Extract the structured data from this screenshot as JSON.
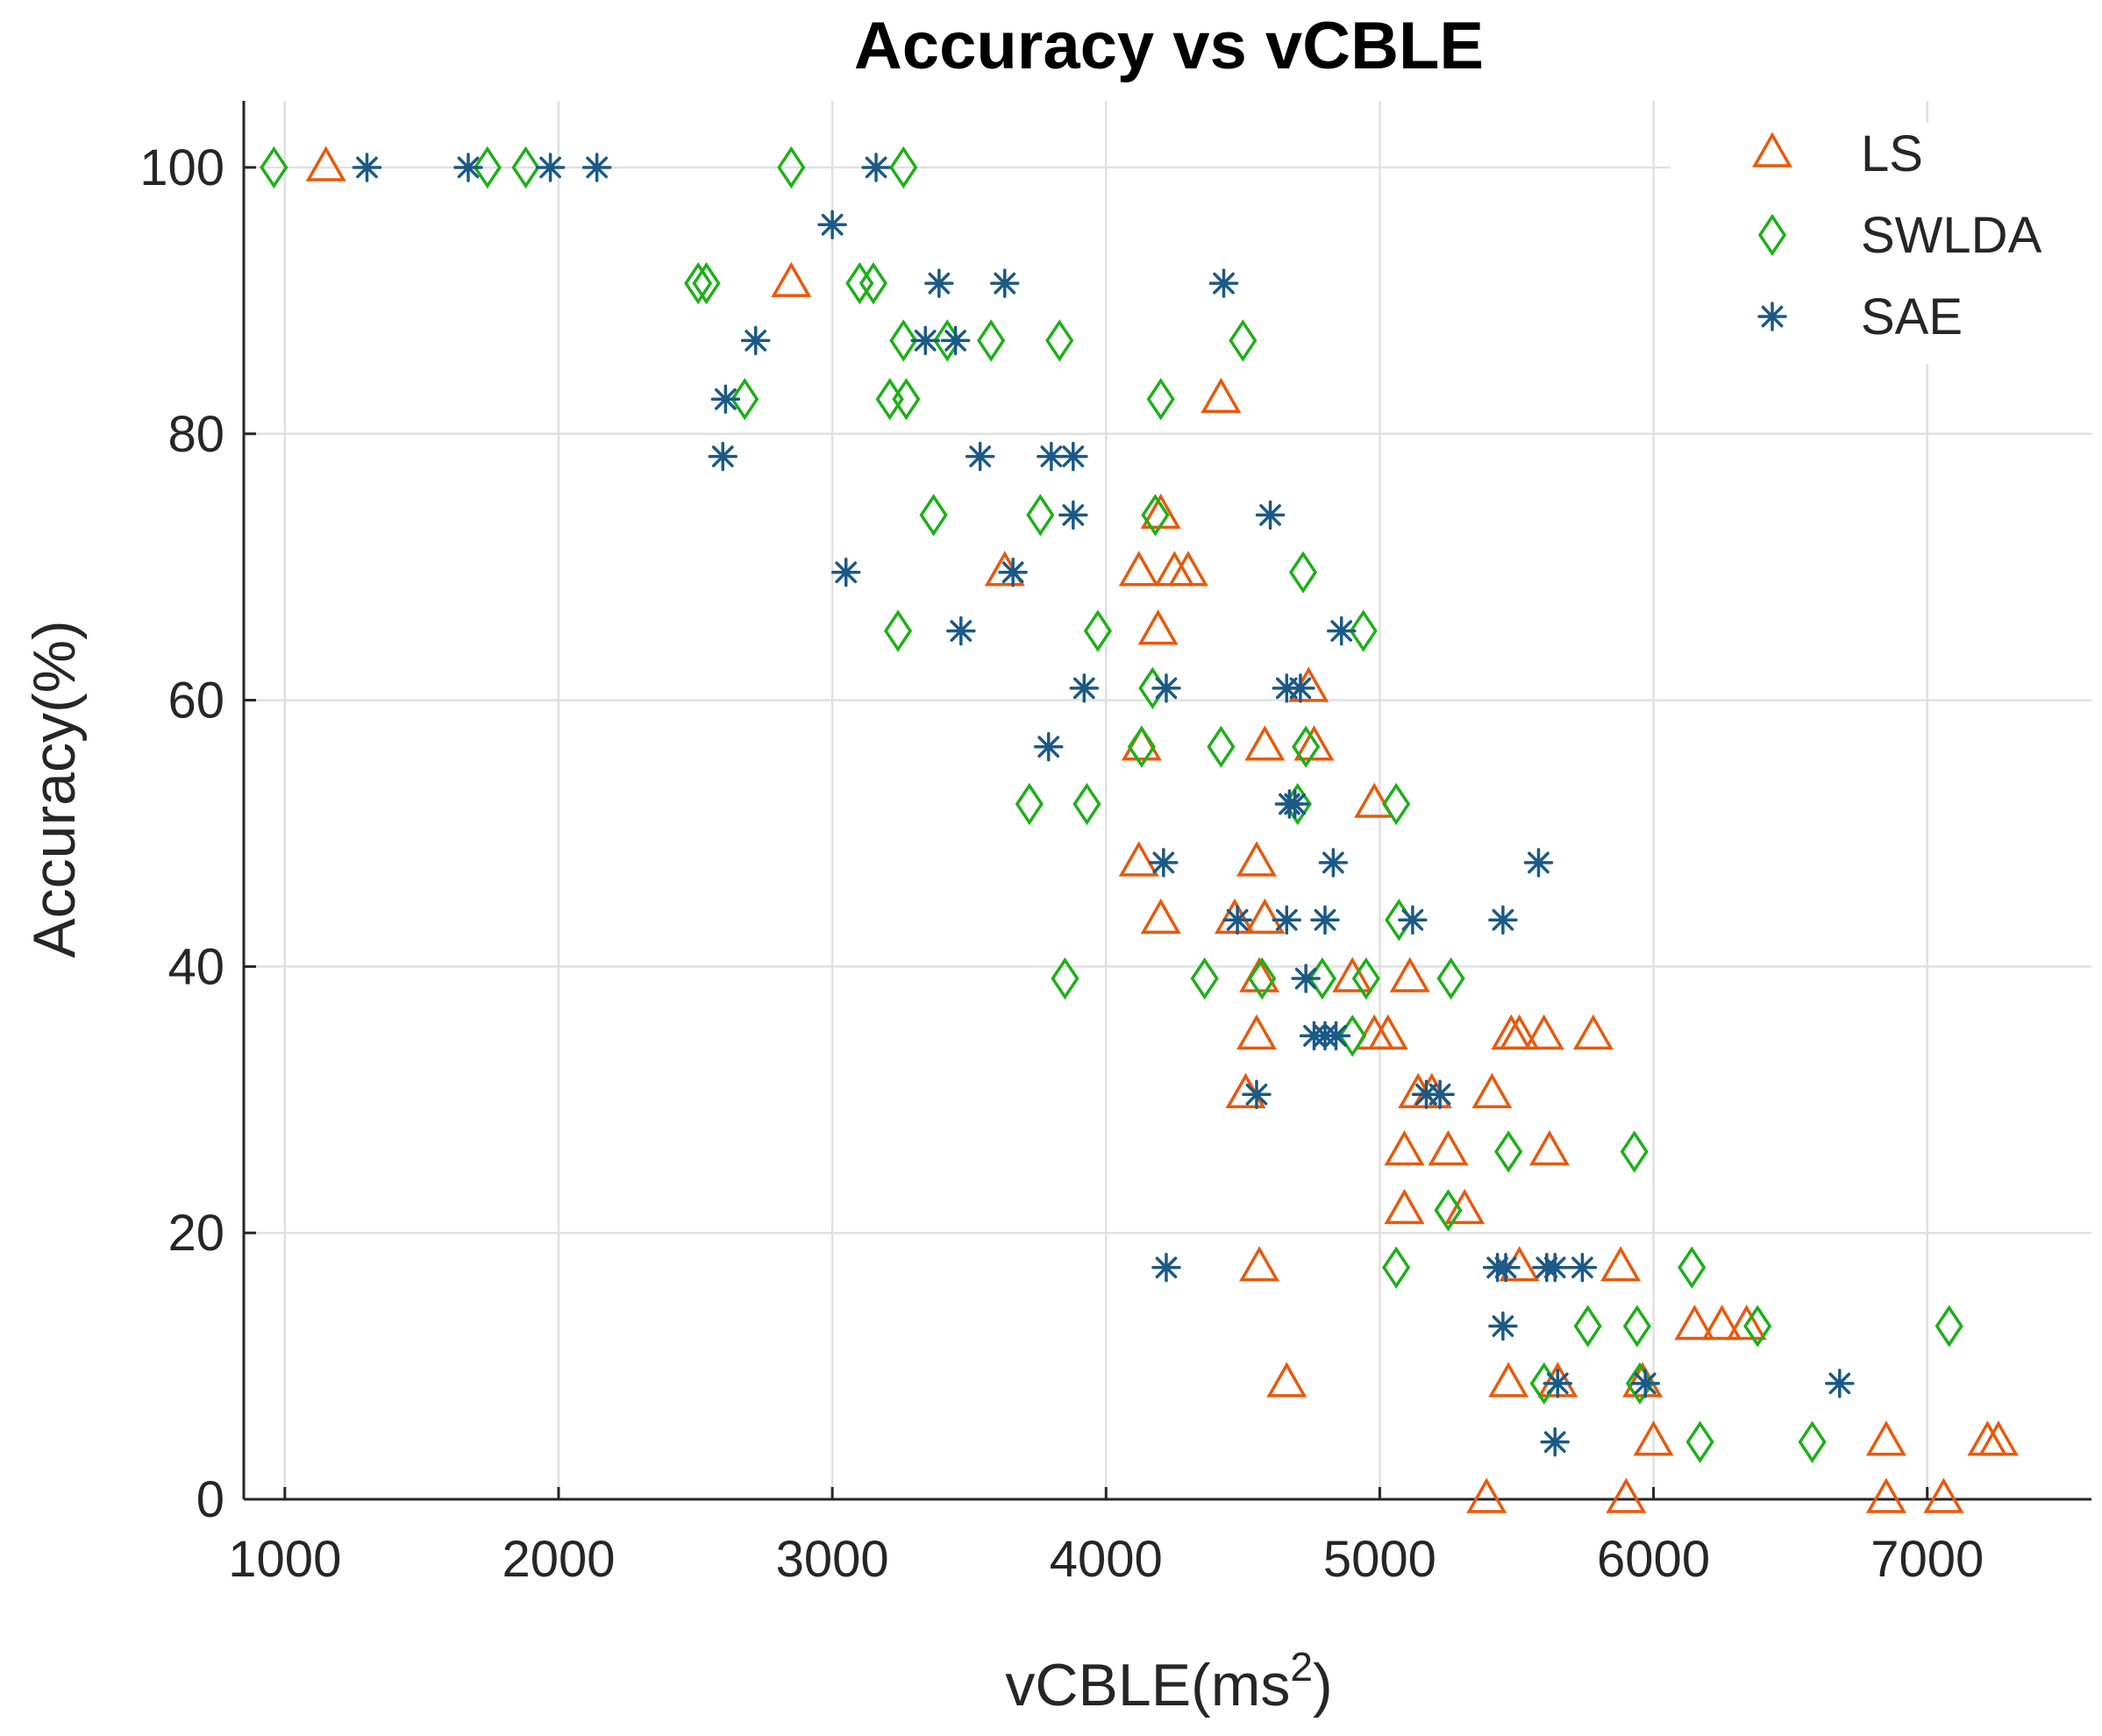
{
  "chart_data": {
    "type": "scatter",
    "title": "Accuracy vs vCBLE",
    "xlabel_base": "vCBLE(ms",
    "xlabel_sup": "2",
    "xlabel_end": ")",
    "ylabel": "Accuracy(%)",
    "xlim": [
      850,
      7600
    ],
    "ylim": [
      0,
      105
    ],
    "xticks": [
      1000,
      2000,
      3000,
      4000,
      5000,
      6000,
      7000
    ],
    "yticks": [
      0,
      20,
      40,
      60,
      80,
      100
    ],
    "grid": true,
    "legend_position": "top-right",
    "series": [
      {
        "name": "LS",
        "marker": "triangle",
        "color": "#E8590C",
        "points": [
          [
            1150,
            100
          ],
          [
            2850,
            91.3
          ],
          [
            4420,
            82.6
          ],
          [
            4200,
            73.9
          ],
          [
            3630,
            69.6
          ],
          [
            4120,
            69.6
          ],
          [
            4250,
            69.6
          ],
          [
            4300,
            69.6
          ],
          [
            4190,
            65.2
          ],
          [
            4740,
            60.9
          ],
          [
            4130,
            56.5
          ],
          [
            4580,
            56.5
          ],
          [
            4760,
            56.5
          ],
          [
            4980,
            52.2
          ],
          [
            4120,
            47.8
          ],
          [
            4550,
            47.8
          ],
          [
            4200,
            43.5
          ],
          [
            4470,
            43.5
          ],
          [
            4580,
            43.5
          ],
          [
            4560,
            39.1
          ],
          [
            4900,
            39.1
          ],
          [
            5110,
            39.1
          ],
          [
            4550,
            34.8
          ],
          [
            4980,
            34.8
          ],
          [
            5030,
            34.8
          ],
          [
            5480,
            34.8
          ],
          [
            5510,
            34.8
          ],
          [
            5600,
            34.8
          ],
          [
            5780,
            34.8
          ],
          [
            4510,
            30.4
          ],
          [
            5140,
            30.4
          ],
          [
            5190,
            30.4
          ],
          [
            5410,
            30.4
          ],
          [
            5090,
            26.1
          ],
          [
            5250,
            26.1
          ],
          [
            5620,
            26.1
          ],
          [
            5090,
            21.7
          ],
          [
            5310,
            21.7
          ],
          [
            4560,
            17.4
          ],
          [
            5510,
            17.4
          ],
          [
            5880,
            17.4
          ],
          [
            6150,
            13.0
          ],
          [
            6250,
            13.0
          ],
          [
            6340,
            13.0
          ],
          [
            4660,
            8.7
          ],
          [
            5470,
            8.7
          ],
          [
            5650,
            8.7
          ],
          [
            5960,
            8.7
          ],
          [
            6000,
            4.3
          ],
          [
            6850,
            4.3
          ],
          [
            7220,
            4.3
          ],
          [
            7260,
            4.3
          ],
          [
            5390,
            0
          ],
          [
            5900,
            0
          ],
          [
            6850,
            0
          ],
          [
            7060,
            0
          ]
        ]
      },
      {
        "name": "SWLDA",
        "marker": "diamond",
        "color": "#1DB019",
        "points": [
          [
            960,
            100
          ],
          [
            1740,
            100
          ],
          [
            1880,
            100
          ],
          [
            2850,
            100
          ],
          [
            3260,
            100
          ],
          [
            2510,
            91.3
          ],
          [
            2540,
            91.3
          ],
          [
            3100,
            91.3
          ],
          [
            3150,
            91.3
          ],
          [
            3260,
            87.0
          ],
          [
            3420,
            87.0
          ],
          [
            3580,
            87.0
          ],
          [
            3830,
            87.0
          ],
          [
            4500,
            87.0
          ],
          [
            2680,
            82.6
          ],
          [
            3210,
            82.6
          ],
          [
            3270,
            82.6
          ],
          [
            4200,
            82.6
          ],
          [
            3370,
            73.9
          ],
          [
            3760,
            73.9
          ],
          [
            4180,
            73.9
          ],
          [
            4720,
            69.6
          ],
          [
            3240,
            65.2
          ],
          [
            3970,
            65.2
          ],
          [
            4940,
            65.2
          ],
          [
            4170,
            60.9
          ],
          [
            4130,
            56.5
          ],
          [
            4420,
            56.5
          ],
          [
            4730,
            56.5
          ],
          [
            3720,
            52.2
          ],
          [
            3930,
            52.2
          ],
          [
            4700,
            52.2
          ],
          [
            5060,
            52.2
          ],
          [
            5070,
            43.5
          ],
          [
            3850,
            39.1
          ],
          [
            4360,
            39.1
          ],
          [
            4570,
            39.1
          ],
          [
            4790,
            39.1
          ],
          [
            4950,
            39.1
          ],
          [
            5260,
            39.1
          ],
          [
            4900,
            34.8
          ],
          [
            5470,
            26.1
          ],
          [
            5930,
            26.1
          ],
          [
            5250,
            21.7
          ],
          [
            5060,
            17.4
          ],
          [
            6140,
            17.4
          ],
          [
            5760,
            13.0
          ],
          [
            5940,
            13.0
          ],
          [
            6380,
            13.0
          ],
          [
            7080,
            13.0
          ],
          [
            5600,
            8.7
          ],
          [
            5950,
            8.7
          ],
          [
            6170,
            4.3
          ],
          [
            6580,
            4.3
          ]
        ]
      },
      {
        "name": "SAE",
        "marker": "asterisk",
        "color": "#1B5986",
        "points": [
          [
            1300,
            100
          ],
          [
            1670,
            100
          ],
          [
            1970,
            100
          ],
          [
            2140,
            100
          ],
          [
            3160,
            100
          ],
          [
            3000,
            95.7
          ],
          [
            3390,
            91.3
          ],
          [
            3630,
            91.3
          ],
          [
            4430,
            91.3
          ],
          [
            2720,
            87.0
          ],
          [
            3340,
            87.0
          ],
          [
            3450,
            87.0
          ],
          [
            2610,
            82.6
          ],
          [
            2600,
            78.3
          ],
          [
            3540,
            78.3
          ],
          [
            3800,
            78.3
          ],
          [
            3880,
            78.3
          ],
          [
            3880,
            73.9
          ],
          [
            4600,
            73.9
          ],
          [
            3050,
            69.6
          ],
          [
            3660,
            69.6
          ],
          [
            3470,
            65.2
          ],
          [
            4860,
            65.2
          ],
          [
            3920,
            60.9
          ],
          [
            4220,
            60.9
          ],
          [
            4660,
            60.9
          ],
          [
            4710,
            60.9
          ],
          [
            3790,
            56.5
          ],
          [
            4670,
            52.2
          ],
          [
            4690,
            52.2
          ],
          [
            4210,
            47.8
          ],
          [
            4830,
            47.8
          ],
          [
            5580,
            47.8
          ],
          [
            4480,
            43.5
          ],
          [
            4660,
            43.5
          ],
          [
            4800,
            43.5
          ],
          [
            5120,
            43.5
          ],
          [
            5450,
            43.5
          ],
          [
            4730,
            39.1
          ],
          [
            4760,
            34.8
          ],
          [
            4800,
            34.8
          ],
          [
            4840,
            34.8
          ],
          [
            4550,
            30.4
          ],
          [
            5170,
            30.4
          ],
          [
            5220,
            30.4
          ],
          [
            4220,
            17.4
          ],
          [
            5430,
            17.4
          ],
          [
            5460,
            17.4
          ],
          [
            5610,
            17.4
          ],
          [
            5640,
            17.4
          ],
          [
            5740,
            17.4
          ],
          [
            5450,
            13.0
          ],
          [
            5650,
            8.7
          ],
          [
            5970,
            8.7
          ],
          [
            6680,
            8.7
          ],
          [
            5640,
            4.3
          ]
        ]
      }
    ]
  }
}
